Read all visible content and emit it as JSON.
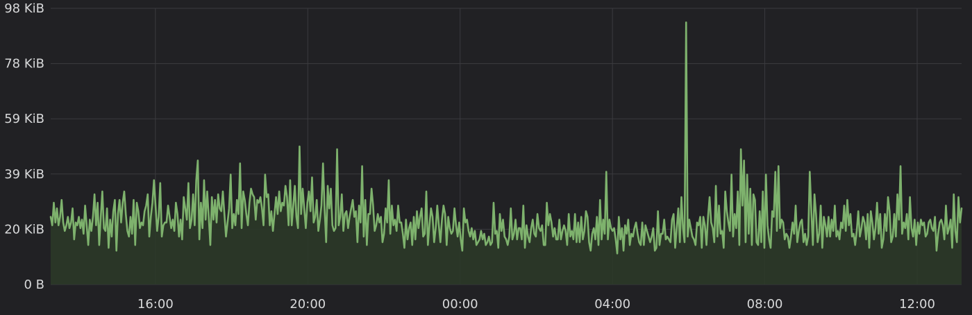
{
  "chart_data": {
    "type": "area",
    "title": "",
    "xlabel": "",
    "ylabel": "",
    "x_tick_labels": [
      "16:00",
      "20:00",
      "00:00",
      "04:00",
      "08:00",
      "12:00"
    ],
    "y_tick_labels": [
      "0 B",
      "20 KiB",
      "39 KiB",
      "59 KiB",
      "78 KiB",
      "98 KiB"
    ],
    "y_unit": "KiB",
    "ylim": [
      0,
      98
    ],
    "x_range": [
      "13:15",
      "13:10 (+1 day)"
    ],
    "sample_interval_minutes": 2.5,
    "grid": true,
    "series": [
      {
        "color": "#7eb26d",
        "fill_color": "#2c3a28",
        "values": [
          24,
          21,
          29,
          22,
          27,
          21,
          24,
          30,
          22,
          19,
          21,
          24,
          20,
          22,
          27,
          16,
          22,
          21,
          24,
          20,
          23,
          18,
          28,
          21,
          14,
          23,
          19,
          24,
          32,
          21,
          29,
          14,
          24,
          33,
          20,
          19,
          27,
          13,
          23,
          17,
          26,
          30,
          12,
          25,
          30,
          22,
          29,
          33,
          25,
          19,
          17,
          24,
          18,
          30,
          14,
          29,
          26,
          20,
          22,
          21,
          26,
          28,
          32,
          17,
          24,
          29,
          37,
          28,
          19,
          24,
          36,
          17,
          21,
          22,
          22,
          28,
          24,
          20,
          23,
          19,
          29,
          25,
          17,
          23,
          16,
          31,
          27,
          23,
          36,
          20,
          23,
          32,
          21,
          37,
          44,
          16,
          29,
          20,
          37,
          23,
          33,
          24,
          14,
          31,
          23,
          30,
          22,
          32,
          27,
          26,
          33,
          25,
          17,
          22,
          27,
          39,
          20,
          25,
          21,
          30,
          25,
          43,
          20,
          33,
          30,
          25,
          21,
          29,
          34,
          32,
          31,
          23,
          30,
          29,
          31,
          27,
          21,
          39,
          31,
          32,
          21,
          26,
          19,
          25,
          31,
          25,
          33,
          26,
          29,
          28,
          35,
          31,
          21,
          37,
          21,
          28,
          35,
          24,
          20,
          49,
          25,
          34,
          27,
          20,
          29,
          33,
          26,
          38,
          22,
          24,
          30,
          19,
          23,
          28,
          43,
          27,
          15,
          35,
          27,
          34,
          21,
          19,
          20,
          48,
          21,
          24,
          32,
          19,
          25,
          26,
          20,
          24,
          27,
          30,
          24,
          26,
          15,
          28,
          22,
          42,
          17,
          30,
          14,
          25,
          25,
          34,
          28,
          19,
          21,
          25,
          22,
          24,
          15,
          18,
          27,
          22,
          37,
          18,
          28,
          21,
          23,
          19,
          28,
          22,
          22,
          18,
          13,
          23,
          16,
          20,
          22,
          14,
          24,
          16,
          26,
          20,
          24,
          27,
          17,
          18,
          33,
          14,
          21,
          27,
          24,
          15,
          20,
          28,
          21,
          15,
          23,
          28,
          25,
          14,
          24,
          20,
          18,
          19,
          27,
          21,
          17,
          22,
          16,
          12,
          27,
          22,
          23,
          19,
          17,
          20,
          16,
          19,
          14,
          15,
          16,
          19,
          16,
          18,
          14,
          15,
          17,
          14,
          15,
          29,
          18,
          19,
          13,
          25,
          19,
          23,
          17,
          16,
          14,
          17,
          27,
          16,
          18,
          23,
          16,
          20,
          20,
          16,
          28,
          13,
          21,
          17,
          15,
          20,
          23,
          18,
          17,
          25,
          20,
          19,
          21,
          14,
          14,
          29,
          21,
          25,
          22,
          17,
          20,
          16,
          16,
          23,
          16,
          19,
          21,
          19,
          14,
          25,
          17,
          19,
          16,
          25,
          15,
          22,
          15,
          24,
          16,
          19,
          26,
          24,
          15,
          12,
          18,
          20,
          16,
          24,
          14,
          30,
          16,
          23,
          18,
          40,
          16,
          23,
          20,
          19,
          20,
          16,
          11,
          24,
          16,
          20,
          12,
          21,
          18,
          23,
          14,
          18,
          17,
          20,
          22,
          18,
          15,
          14,
          22,
          14,
          21,
          19,
          17,
          15,
          17,
          20,
          12,
          13,
          26,
          14,
          18,
          18,
          23,
          16,
          17,
          16,
          15,
          23,
          25,
          13,
          20,
          27,
          15,
          31,
          20,
          15,
          93,
          17,
          23,
          20,
          17,
          16,
          14,
          22,
          21,
          24,
          13,
          24,
          21,
          14,
          24,
          31,
          22,
          20,
          15,
          35,
          17,
          28,
          18,
          19,
          13,
          33,
          26,
          22,
          19,
          39,
          17,
          25,
          20,
          33,
          14,
          48,
          28,
          44,
          15,
          39,
          18,
          34,
          14,
          32,
          30,
          15,
          14,
          26,
          15,
          33,
          13,
          39,
          21,
          16,
          13,
          26,
          24,
          40,
          19,
          42,
          20,
          23,
          22,
          16,
          18,
          17,
          13,
          17,
          22,
          18,
          28,
          15,
          19,
          22,
          23,
          15,
          18,
          14,
          17,
          40,
          26,
          14,
          32,
          25,
          15,
          18,
          28,
          13,
          24,
          21,
          17,
          24,
          17,
          23,
          19,
          28,
          17,
          19,
          16,
          22,
          20,
          28,
          19,
          30,
          21,
          25,
          17,
          18,
          14,
          19,
          26,
          17,
          20,
          24,
          22,
          16,
          25,
          13,
          26,
          22,
          16,
          20,
          29,
          18,
          25,
          13,
          16,
          25,
          19,
          31,
          26,
          15,
          17,
          25,
          17,
          32,
          23,
          42,
          18,
          22,
          20,
          25,
          16,
          31,
          20,
          17,
          23,
          14,
          22,
          18,
          23,
          21,
          22,
          17,
          18,
          22,
          23,
          20,
          19,
          24,
          12,
          18,
          22,
          23,
          21,
          16,
          28,
          18,
          20,
          23,
          13,
          32,
          19,
          15,
          31,
          22,
          27
        ]
      }
    ]
  }
}
